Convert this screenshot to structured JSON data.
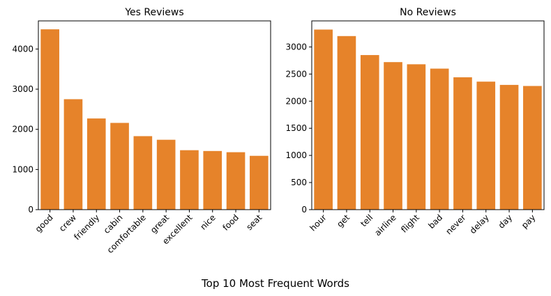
{
  "figure": {
    "suptitle": "Top 10 Most Frequent Words"
  },
  "chart_data": [
    {
      "type": "bar",
      "title": "Yes Reviews",
      "categories": [
        "good",
        "crew",
        "friendly",
        "cabin",
        "comfortable",
        "great",
        "excellent",
        "nice",
        "food",
        "seat"
      ],
      "values": [
        4490,
        2750,
        2270,
        2160,
        1830,
        1740,
        1480,
        1460,
        1430,
        1340
      ],
      "ylim": [
        0,
        4700
      ],
      "yticks": [
        0,
        1000,
        2000,
        3000,
        4000
      ],
      "bar_color": "#e6832a",
      "grid": false
    },
    {
      "type": "bar",
      "title": "No Reviews",
      "categories": [
        "hour",
        "get",
        "tell",
        "airline",
        "flight",
        "bad",
        "never",
        "delay",
        "day",
        "pay"
      ],
      "values": [
        3320,
        3200,
        2850,
        2720,
        2680,
        2600,
        2440,
        2360,
        2300,
        2280
      ],
      "ylim": [
        0,
        3480
      ],
      "yticks": [
        0,
        500,
        1000,
        1500,
        2000,
        2500,
        3000
      ],
      "bar_color": "#e6832a",
      "grid": false
    }
  ]
}
